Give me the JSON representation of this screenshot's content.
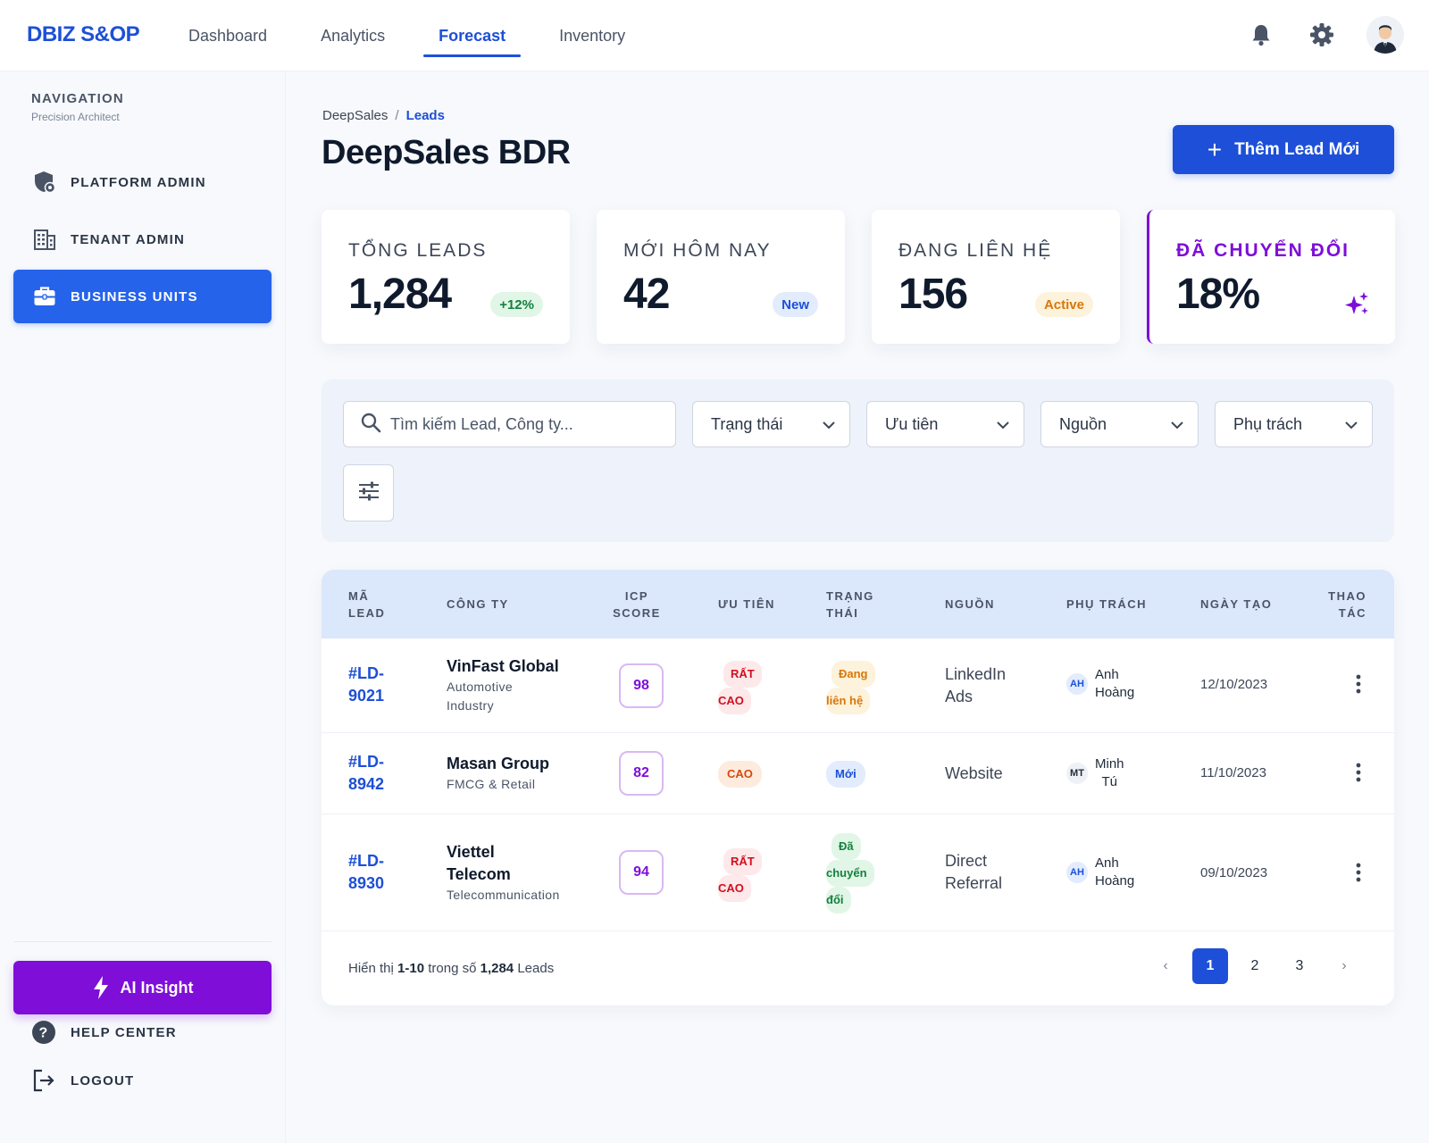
{
  "app": {
    "brand": "DBIZ S&OP"
  },
  "top_nav": [
    {
      "label": "Dashboard",
      "active": false
    },
    {
      "label": "Analytics",
      "active": false
    },
    {
      "label": "Forecast",
      "active": true
    },
    {
      "label": "Inventory",
      "active": false
    }
  ],
  "top_icons": [
    "bell-icon",
    "gear-icon",
    "user-avatar"
  ],
  "sidebar": {
    "title": "NAVIGATION",
    "subtitle": "Precision Architect",
    "items": [
      {
        "label": "PLATFORM ADMIN",
        "icon": "shield-icon",
        "active": false
      },
      {
        "label": "TENANT ADMIN",
        "icon": "building-icon",
        "active": false
      },
      {
        "label": "BUSINESS UNITS",
        "icon": "briefcase-icon",
        "active": true
      }
    ],
    "ai_button": "AI Insight",
    "footer": [
      {
        "label": "HELP CENTER",
        "icon": "help-icon"
      },
      {
        "label": "LOGOUT",
        "icon": "logout-icon"
      }
    ]
  },
  "breadcrumb": {
    "root": "DeepSales",
    "separator": "/",
    "current": "Leads"
  },
  "page_title": "DeepSales BDR",
  "add_button": "Thêm Lead Mới",
  "kpis": [
    {
      "label": "TỔNG LEADS",
      "value": "1,284",
      "badge": "+12%",
      "badge_color": "#15803d",
      "badge_bg": "#e1f6e7"
    },
    {
      "label": "MỚI HÔM NAY",
      "value": "42",
      "badge": "New",
      "badge_color": "#1d4fd8",
      "badge_bg": "#e2ecfd"
    },
    {
      "label": "ĐANG LIÊN HỆ",
      "value": "156",
      "badge": "Active",
      "badge_color": "#d97706",
      "badge_bg": "#fdf2dc"
    },
    {
      "label": "ĐÃ CHUYỂN ĐỔI",
      "value": "18%",
      "icon": "sparkle-icon"
    }
  ],
  "filters": {
    "search_placeholder": "Tìm kiếm Lead, Công ty...",
    "selects": [
      "Trạng thái",
      "Ưu tiên",
      "Nguồn",
      "Phụ trách"
    ]
  },
  "table": {
    "headers": {
      "lead_id": [
        "MÃ",
        "LEAD"
      ],
      "company": "CÔNG TY",
      "icp": [
        "ICP",
        "SCORE"
      ],
      "priority": "ƯU TIÊN",
      "status": [
        "TRẠNG",
        "THÁI"
      ],
      "source": "NGUỒN",
      "owner": "PHỤ TRÁCH",
      "created": "NGÀY TẠO",
      "actions": [
        "THAO",
        "TÁC"
      ]
    },
    "rows": [
      {
        "id_lines": [
          "#LD-",
          "9021"
        ],
        "company_lines": [
          "VinFast Global"
        ],
        "industry_lines": [
          "Automotive",
          "Industry"
        ],
        "icp": "98",
        "priority_lines": [
          "RẤT",
          "CAO"
        ],
        "status_lines": [
          "Đang",
          "liên hệ"
        ],
        "source_lines": [
          "LinkedIn",
          "Ads"
        ],
        "owner_initials": "AH",
        "owner_lines": [
          "Anh",
          "Hoàng"
        ],
        "created": "12/10/2023"
      },
      {
        "id_lines": [
          "#LD-",
          "8942"
        ],
        "company_lines": [
          "Masan Group"
        ],
        "industry_lines": [
          "FMCG & Retail"
        ],
        "icp": "82",
        "priority_lines": [
          "CAO"
        ],
        "status_lines": [
          "Mới"
        ],
        "source_lines": [
          "Website"
        ],
        "owner_initials": "MT",
        "owner_lines": [
          "Minh",
          "Tú"
        ],
        "created": "11/10/2023"
      },
      {
        "id_lines": [
          "#LD-",
          "8930"
        ],
        "company_lines": [
          "Viettel",
          "Telecom"
        ],
        "industry_lines": [
          "Telecommunication"
        ],
        "icp": "94",
        "priority_lines": [
          "RẤT",
          "CAO"
        ],
        "status_lines": [
          "Đã",
          "chuyển",
          "đổi"
        ],
        "source_lines": [
          "Direct",
          "Referral"
        ],
        "owner_initials": "AH",
        "owner_lines": [
          "Anh",
          "Hoàng"
        ],
        "created": "09/10/2023"
      }
    ],
    "footer": {
      "prefix": "Hiển thị",
      "range": "1-10",
      "middle": "trong số",
      "total": "1,284",
      "suffix": "Leads"
    },
    "pagination": {
      "prev": "‹",
      "pages": [
        "1",
        "2",
        "3"
      ],
      "current": "1",
      "next": "›"
    }
  }
}
